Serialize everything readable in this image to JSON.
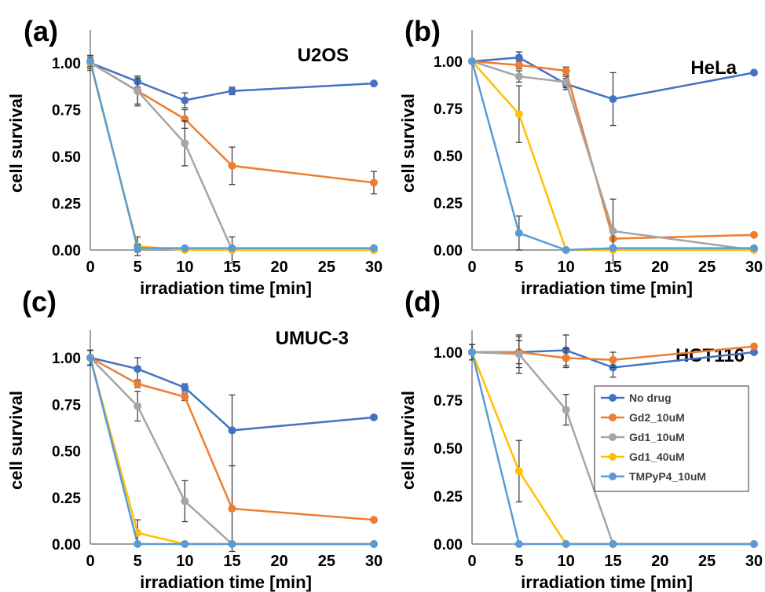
{
  "x_categories": [
    "0",
    "5",
    "10",
    "15",
    "20",
    "25",
    "30"
  ],
  "y_ticks": [
    "0.00",
    "0.25",
    "0.50",
    "0.75",
    "1.00"
  ],
  "xlabel": "irradiation time  [min]",
  "ylabel": "cell survival",
  "legend": {
    "entries": [
      "No drug",
      "Gd2_10uM",
      "Gd1_10uM",
      "Gd1_40uM",
      "TMPyP4_10uM"
    ],
    "colors": [
      "#4472C4",
      "#ED7D31",
      "#A5A5A5",
      "#FFC000",
      "#5B9BD5"
    ]
  },
  "chart_data": [
    {
      "type": "line",
      "panel": "(a)",
      "title": "U2OS",
      "x": [
        0,
        5,
        10,
        15,
        30
      ],
      "ylim": [
        0,
        1.1
      ],
      "series": [
        {
          "name": "No drug",
          "color": "#4472C4",
          "values": [
            1.0,
            0.9,
            0.8,
            0.85,
            0.89
          ],
          "err": [
            0.03,
            0.03,
            0.04,
            0.02,
            0.0
          ]
        },
        {
          "name": "Gd2_10uM",
          "color": "#ED7D31",
          "values": [
            1.0,
            0.85,
            0.7,
            0.45,
            0.36
          ],
          "err": [
            0.03,
            0.07,
            0.05,
            0.1,
            0.06
          ]
        },
        {
          "name": "Gd1_10uM",
          "color": "#A5A5A5",
          "values": [
            1.0,
            0.85,
            0.57,
            0.0,
            0.0
          ],
          "err": [
            0.04,
            0.08,
            0.12,
            0.07,
            0.0
          ]
        },
        {
          "name": "Gd1_40uM",
          "color": "#FFC000",
          "values": [
            1.0,
            0.02,
            0.0,
            0.0,
            0.0
          ],
          "err": [
            0.03,
            0.05,
            0.0,
            0.0,
            0.0
          ]
        },
        {
          "name": "TMPyP4_10uM",
          "color": "#5B9BD5",
          "values": [
            1.01,
            0.01,
            0.01,
            0.01,
            0.01
          ],
          "err": [
            0.03,
            0.02,
            0.0,
            0.0,
            0.0
          ]
        }
      ]
    },
    {
      "type": "line",
      "panel": "(b)",
      "title": "HeLa",
      "x": [
        0,
        5,
        10,
        15,
        30
      ],
      "ylim": [
        0,
        1.1
      ],
      "series": [
        {
          "name": "No drug",
          "color": "#4472C4",
          "values": [
            1.0,
            1.02,
            0.88,
            0.8,
            0.94
          ],
          "err": [
            0.0,
            0.03,
            0.03,
            0.14,
            0.0
          ]
        },
        {
          "name": "Gd2_10uM",
          "color": "#ED7D31",
          "values": [
            1.0,
            0.98,
            0.95,
            0.06,
            0.08
          ],
          "err": [
            0.0,
            0.02,
            0.02,
            0.04,
            0.0
          ]
        },
        {
          "name": "Gd1_10uM",
          "color": "#A5A5A5",
          "values": [
            1.0,
            0.92,
            0.89,
            0.1,
            0.0
          ],
          "err": [
            0.0,
            0.03,
            0.03,
            0.17,
            0.0
          ]
        },
        {
          "name": "Gd1_40uM",
          "color": "#FFC000",
          "values": [
            1.0,
            0.72,
            0.0,
            0.0,
            0.0
          ],
          "err": [
            0.0,
            0.15,
            0.0,
            0.0,
            0.0
          ]
        },
        {
          "name": "TMPyP4_10uM",
          "color": "#5B9BD5",
          "values": [
            1.0,
            0.09,
            0.0,
            0.01,
            0.01
          ],
          "err": [
            0.0,
            0.09,
            0.0,
            0.0,
            0.0
          ]
        }
      ]
    },
    {
      "type": "line",
      "panel": "(c)",
      "title": "UMUC-3",
      "x": [
        0,
        5,
        10,
        15,
        30
      ],
      "ylim": [
        0,
        1.1
      ],
      "series": [
        {
          "name": "No drug",
          "color": "#4472C4",
          "values": [
            1.0,
            0.94,
            0.84,
            0.61,
            0.68
          ],
          "err": [
            0.04,
            0.06,
            0.02,
            0.19,
            0.0
          ]
        },
        {
          "name": "Gd2_10uM",
          "color": "#ED7D31",
          "values": [
            1.0,
            0.86,
            0.79,
            0.19,
            0.13
          ],
          "err": [
            0.04,
            0.02,
            0.02,
            0.23,
            0.0
          ]
        },
        {
          "name": "Gd1_10uM",
          "color": "#A5A5A5",
          "values": [
            1.0,
            0.74,
            0.23,
            0.0,
            0.0
          ],
          "err": [
            0.04,
            0.08,
            0.11,
            0.0,
            0.0
          ]
        },
        {
          "name": "Gd1_40uM",
          "color": "#FFC000",
          "values": [
            1.0,
            0.06,
            0.0,
            0.0,
            0.0
          ],
          "err": [
            0.04,
            0.07,
            0.0,
            0.0,
            0.0
          ]
        },
        {
          "name": "TMPyP4_10uM",
          "color": "#5B9BD5",
          "values": [
            1.0,
            0.0,
            0.0,
            0.0,
            0.0
          ],
          "err": [
            0.04,
            0.0,
            0.0,
            0.0,
            0.0
          ]
        }
      ]
    },
    {
      "type": "line",
      "panel": "(d)",
      "title": "HCT116",
      "x": [
        0,
        5,
        10,
        15,
        30
      ],
      "ylim": [
        0,
        1.1
      ],
      "series": [
        {
          "name": "No drug",
          "color": "#4472C4",
          "values": [
            1.0,
            1.0,
            1.01,
            0.92,
            1.0
          ],
          "err": [
            0.04,
            0.08,
            0.08,
            0.05,
            0.0
          ]
        },
        {
          "name": "Gd2_10uM",
          "color": "#ED7D31",
          "values": [
            1.0,
            1.0,
            0.97,
            0.96,
            1.03
          ],
          "err": [
            0.04,
            0.06,
            0.05,
            0.04,
            0.0
          ]
        },
        {
          "name": "Gd1_10uM",
          "color": "#A5A5A5",
          "values": [
            1.0,
            0.99,
            0.7,
            0.0,
            0.0
          ],
          "err": [
            0.04,
            0.1,
            0.08,
            0.0,
            0.0
          ]
        },
        {
          "name": "Gd1_40uM",
          "color": "#FFC000",
          "values": [
            1.0,
            0.38,
            0.0,
            0.0,
            0.0
          ],
          "err": [
            0.04,
            0.16,
            0.0,
            0.0,
            0.0
          ]
        },
        {
          "name": "TMPyP4_10uM",
          "color": "#5B9BD5",
          "values": [
            1.0,
            0.0,
            0.0,
            0.0,
            0.0
          ],
          "err": [
            0.04,
            0.0,
            0.0,
            0.0,
            0.0
          ]
        }
      ]
    }
  ]
}
